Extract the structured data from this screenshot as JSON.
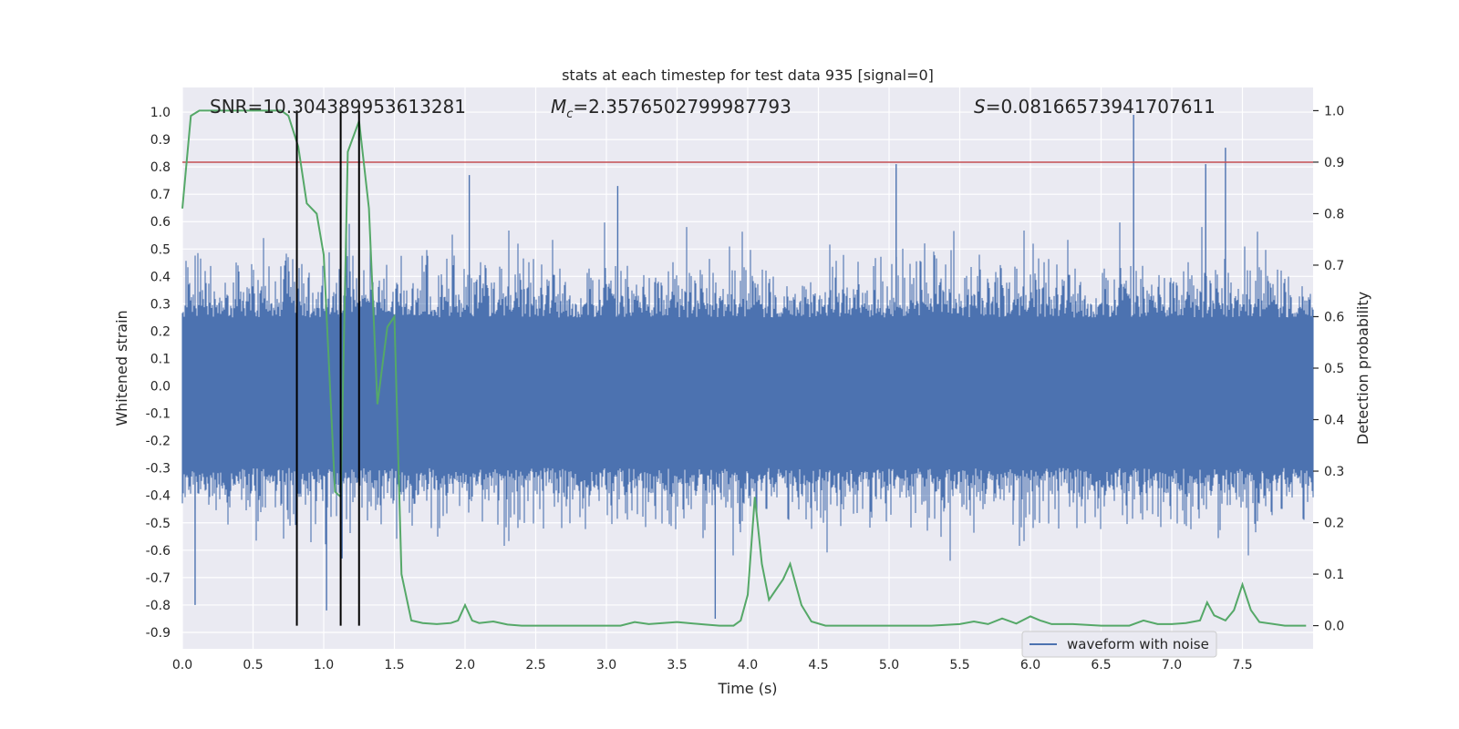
{
  "chart_data": {
    "type": "line",
    "title": "stats at each timestep for test data 935 [signal=0]",
    "xlabel": "Time (s)",
    "ylabel_left": "Whitened strain",
    "ylabel_right": "Detection probability",
    "xlim": [
      0,
      8
    ],
    "ylim_left": [
      -0.96,
      1.09
    ],
    "ylim_right": [
      -0.045,
      1.045
    ],
    "x_ticks": [
      "0.0",
      "0.5",
      "1.0",
      "1.5",
      "2.0",
      "2.5",
      "3.0",
      "3.5",
      "4.0",
      "4.5",
      "5.0",
      "5.5",
      "6.0",
      "6.5",
      "7.0",
      "7.5"
    ],
    "x_tick_values": [
      0,
      0.5,
      1,
      1.5,
      2,
      2.5,
      3,
      3.5,
      4,
      4.5,
      5,
      5.5,
      6,
      6.5,
      7,
      7.5
    ],
    "y_ticks_left": [
      "1.0",
      "0.9",
      "0.8",
      "0.7",
      "0.6",
      "0.5",
      "0.4",
      "0.3",
      "0.2",
      "0.1",
      "0.0",
      "-0.1",
      "-0.2",
      "-0.3",
      "-0.4",
      "-0.5",
      "-0.6",
      "-0.7",
      "-0.8",
      "-0.9"
    ],
    "y_tick_values_left": [
      1.0,
      0.9,
      0.8,
      0.7,
      0.6,
      0.5,
      0.4,
      0.3,
      0.2,
      0.1,
      0.0,
      -0.1,
      -0.2,
      -0.3,
      -0.4,
      -0.5,
      -0.6,
      -0.7,
      -0.8,
      -0.9
    ],
    "y_ticks_right": [
      "1.0",
      "0.9",
      "0.8",
      "0.7",
      "0.6",
      "0.5",
      "0.4",
      "0.3",
      "0.2",
      "0.1",
      "0.0"
    ],
    "y_tick_values_right": [
      1.0,
      0.9,
      0.8,
      0.7,
      0.6,
      0.5,
      0.4,
      0.3,
      0.2,
      0.1,
      0.0
    ],
    "annotations": {
      "snr": "SNR=10.304389953613281",
      "mc_label": "M",
      "mc_sub": "c",
      "mc_value": "=2.3576502799987793",
      "s_label": "S",
      "s_value": "=0.08166573941707611"
    },
    "threshold_right": 0.9,
    "vertical_lines_x": [
      0.81,
      1.12,
      1.25
    ],
    "series": [
      {
        "name": "waveform with noise",
        "axis": "left",
        "style": "dense-noise",
        "envelope_typical": 0.25,
        "envelope_core_low": -0.3,
        "peaks": [
          {
            "x": 0.09,
            "y": -0.8
          },
          {
            "x": 0.81,
            "y": -0.6
          },
          {
            "x": 1.02,
            "y": -0.82
          },
          {
            "x": 1.13,
            "y": -0.63
          },
          {
            "x": 2.03,
            "y": 0.77
          },
          {
            "x": 3.08,
            "y": 0.73
          },
          {
            "x": 3.77,
            "y": -0.85
          },
          {
            "x": 5.05,
            "y": 0.81
          },
          {
            "x": 6.73,
            "y": 0.99
          },
          {
            "x": 7.24,
            "y": 0.81
          },
          {
            "x": 7.38,
            "y": 0.87
          }
        ]
      },
      {
        "name": "",
        "axis": "right",
        "style": "line",
        "color": "#55a868",
        "x": [
          0,
          0.06,
          0.12,
          0.2,
          0.3,
          0.4,
          0.5,
          0.6,
          0.7,
          0.75,
          0.82,
          0.88,
          0.95,
          1.0,
          1.08,
          1.12,
          1.17,
          1.25,
          1.32,
          1.38,
          1.45,
          1.5,
          1.55,
          1.62,
          1.7,
          1.8,
          1.9,
          1.95,
          2.0,
          2.05,
          2.1,
          2.2,
          2.3,
          2.4,
          2.5,
          2.8,
          3.0,
          3.1,
          3.2,
          3.3,
          3.5,
          3.7,
          3.8,
          3.9,
          3.95,
          4.0,
          4.05,
          4.1,
          4.15,
          4.2,
          4.25,
          4.3,
          4.38,
          4.45,
          4.55,
          4.7,
          5.0,
          5.3,
          5.5,
          5.6,
          5.7,
          5.8,
          5.9,
          6.0,
          6.07,
          6.15,
          6.3,
          6.5,
          6.7,
          6.8,
          6.9,
          7.0,
          7.1,
          7.2,
          7.25,
          7.3,
          7.38,
          7.44,
          7.5,
          7.56,
          7.62,
          7.8,
          7.95
        ],
        "y": [
          0.81,
          0.99,
          1.0,
          1.0,
          1.0,
          1.0,
          1.0,
          1.0,
          1.0,
          0.99,
          0.93,
          0.82,
          0.8,
          0.72,
          0.26,
          0.25,
          0.92,
          0.98,
          0.81,
          0.43,
          0.58,
          0.6,
          0.1,
          0.01,
          0.005,
          0.003,
          0.005,
          0.01,
          0.04,
          0.01,
          0.005,
          0.008,
          0.002,
          0.0,
          0.0,
          0.0,
          0.0,
          0.0,
          0.007,
          0.003,
          0.007,
          0.002,
          0.0,
          0.0,
          0.01,
          0.06,
          0.25,
          0.12,
          0.05,
          0.07,
          0.09,
          0.12,
          0.04,
          0.008,
          0.0,
          0.0,
          0.0,
          0.0,
          0.003,
          0.008,
          0.003,
          0.014,
          0.004,
          0.018,
          0.01,
          0.003,
          0.003,
          0.0,
          0.0,
          0.01,
          0.003,
          0.003,
          0.005,
          0.01,
          0.045,
          0.02,
          0.01,
          0.03,
          0.08,
          0.03,
          0.007,
          0.0,
          0.0
        ]
      }
    ],
    "legend": {
      "position": "lower-center-right",
      "entries": [
        "waveform with noise"
      ]
    },
    "grid": true,
    "colors": {
      "waveform": "#4c72b0",
      "probability": "#55a868",
      "threshold": "#c44e52",
      "vlines": "#000000",
      "axes_bg": "#eaeaf2",
      "grid": "#ffffff"
    }
  }
}
